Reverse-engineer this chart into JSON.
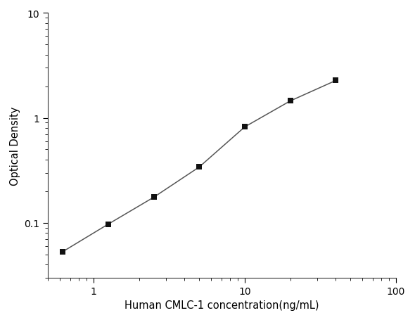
{
  "x_data": [
    0.625,
    1.25,
    2.5,
    5.0,
    10.0,
    20.0,
    40.0
  ],
  "y_data": [
    0.053,
    0.097,
    0.175,
    0.34,
    0.82,
    1.45,
    2.27
  ],
  "xlabel": "Human CMLC-1 concentration(ng/mL)",
  "ylabel": "Optical Density",
  "xlim": [
    0.5,
    100
  ],
  "ylim": [
    0.03,
    10
  ],
  "x_ticks": [
    1,
    10,
    100
  ],
  "y_ticks": [
    0.1,
    1,
    10
  ],
  "y_tick_labels": [
    "0.1",
    "1",
    "10"
  ],
  "x_tick_labels": [
    "1",
    "10",
    "100"
  ],
  "marker_color": "#111111",
  "line_color": "#555555",
  "background_color": "#ffffff",
  "marker_size": 6,
  "line_width": 1.1,
  "xlabel_fontsize": 10.5,
  "ylabel_fontsize": 10.5,
  "tick_fontsize": 10
}
